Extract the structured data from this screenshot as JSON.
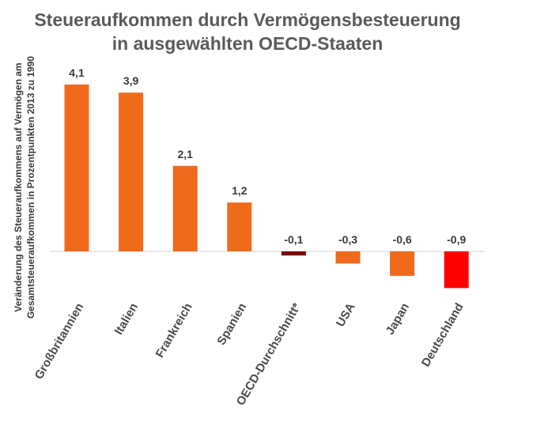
{
  "chart_data": {
    "type": "bar",
    "title_line1": "Steueraufkommen durch Vermögensbesteuerung",
    "title_line2": "in ausgewählten OECD-Staaten",
    "ylabel_line1": "Veränderung des Steueraufkommens auf Vermögen am",
    "ylabel_line2": "Gesamtsteueraufkommen in Prozentpunkten 2013 zu 1990",
    "xlabel": "",
    "categories": [
      "Großbritannien",
      "Italien",
      "Frankreich",
      "Spanien",
      "OECD-Durchschnitt*",
      "USA",
      "Japan",
      "Deutschland"
    ],
    "values": [
      4.1,
      3.9,
      2.1,
      1.2,
      -0.1,
      -0.3,
      -0.6,
      -0.9
    ],
    "value_labels": [
      "4,1",
      "3,9",
      "2,1",
      "1,2",
      "-0,1",
      "-0,3",
      "-0,6",
      "-0,9"
    ],
    "colors": [
      "#ef6a1b",
      "#ef6a1b",
      "#ef6a1b",
      "#ef6a1b",
      "#7a0a0a",
      "#ef6a1b",
      "#ef6a1b",
      "#ff0000"
    ],
    "grid": false,
    "legend": "none"
  }
}
